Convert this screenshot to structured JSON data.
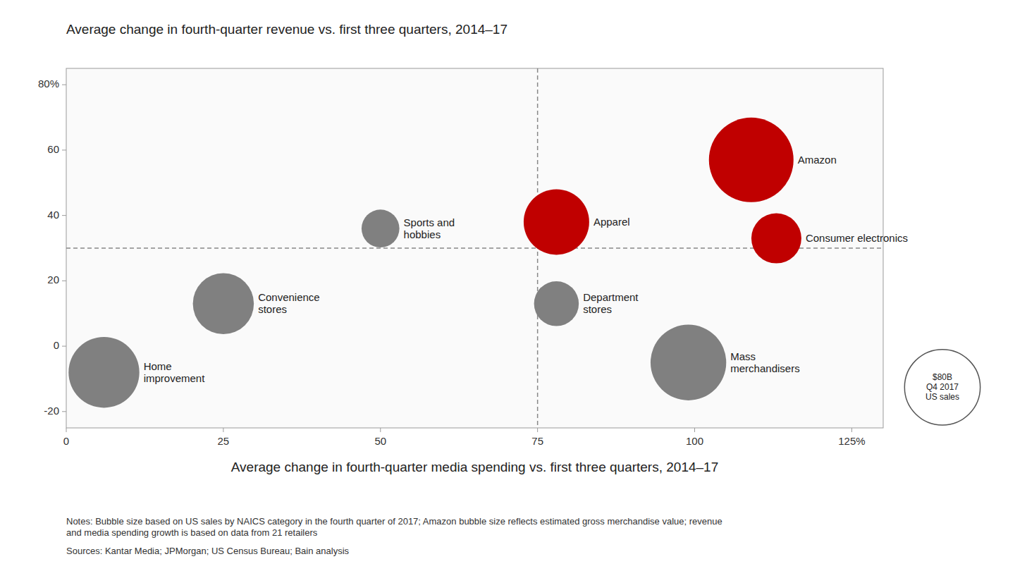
{
  "chart_data": {
    "type": "bubble",
    "title": "Average change in fourth-quarter revenue vs. first three quarters, 2014–17",
    "x_label": "Average change in fourth-quarter media spending vs. first three quarters, 2014–17",
    "notes": "Notes: Bubble size based on US sales by NAICS category in the fourth quarter of 2017; Amazon bubble size reflects estimated gross merchandise value; revenue\nand media spending growth is based on data from 21 retailers",
    "sources": "Sources: Kantar Media; JPMorgan; US Census Bureau; Bain analysis",
    "xlim": [
      0,
      130
    ],
    "ylim": [
      -25,
      85
    ],
    "xticks": [
      0,
      25,
      50,
      75,
      100,
      {
        "value": 125,
        "label": "125%"
      }
    ],
    "yticks": [
      -20,
      0,
      20,
      40,
      60,
      {
        "value": 80,
        "label": "80%"
      }
    ],
    "ref_x": 75,
    "ref_y": 30,
    "labels": [
      "Amazon",
      "Apparel",
      "Consumer electronics",
      "Home\nimprovement",
      "Convenience\nstores",
      "Sports and\nhobbies",
      "Department\nstores",
      "Mass\nmerchandisers"
    ],
    "x": [
      109,
      78,
      113,
      6,
      25,
      50,
      78,
      99
    ],
    "values": [
      57,
      38,
      33,
      -8,
      13,
      36,
      13,
      -5
    ],
    "sizes": [
      100,
      60,
      35,
      70,
      52,
      20,
      28,
      80
    ],
    "colors": [
      "#c00000",
      "#c00000",
      "#c00000",
      "#808080",
      "#808080",
      "#808080",
      "#808080",
      "#808080"
    ],
    "size_legend": {
      "value": 80,
      "label": "$80B\nQ4 2017\nUS sales"
    }
  }
}
